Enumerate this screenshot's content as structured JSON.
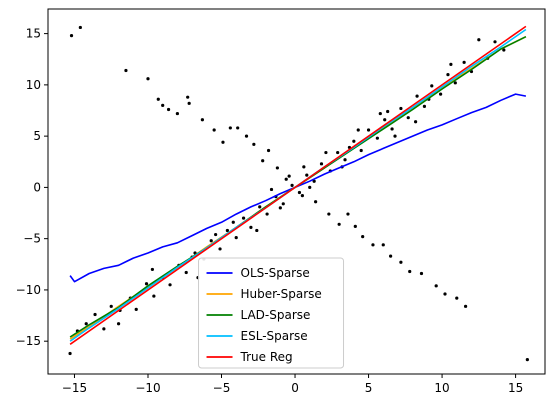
{
  "chart_data": {
    "type": "scatter",
    "title": "",
    "xlabel": "",
    "ylabel": "",
    "xlim": [
      -16.8,
      17.0
    ],
    "ylim": [
      -18.2,
      17.4
    ],
    "xticks": [
      -15,
      -10,
      -5,
      0,
      5,
      10,
      15
    ],
    "yticks": [
      -15,
      -10,
      -5,
      0,
      5,
      10,
      15
    ],
    "legend_position": "lower-center",
    "series": [
      {
        "name": "OLS-Sparse",
        "color": "#0000ff",
        "kind": "line",
        "x": [
          -15.3,
          -15.0,
          -14.0,
          -13.0,
          -12.0,
          -11.0,
          -10.0,
          -9.0,
          -8.0,
          -7.0,
          -6.0,
          -5.0,
          -4.0,
          -3.0,
          -2.0,
          -1.0,
          0.0,
          1.0,
          2.0,
          3.0,
          4.0,
          5.0,
          6.0,
          7.0,
          8.0,
          9.0,
          10.0,
          11.0,
          12.0,
          13.0,
          14.0,
          15.0,
          15.7
        ],
        "y": [
          -8.6,
          -9.2,
          -8.4,
          -7.9,
          -7.6,
          -6.9,
          -6.4,
          -5.8,
          -5.4,
          -4.7,
          -4.0,
          -3.4,
          -2.6,
          -1.9,
          -1.3,
          -0.6,
          0.0,
          0.6,
          1.3,
          1.9,
          2.5,
          3.2,
          3.8,
          4.4,
          5.0,
          5.6,
          6.1,
          6.7,
          7.3,
          7.8,
          8.5,
          9.1,
          8.9
        ]
      },
      {
        "name": "Huber-Sparse",
        "color": "#ffa500",
        "kind": "line",
        "x": [
          -15.3,
          -14.0,
          -12.0,
          -10.0,
          -8.0,
          -6.0,
          -4.0,
          -2.0,
          0.0,
          2.0,
          4.0,
          6.0,
          8.0,
          10.0,
          12.0,
          14.0,
          15.7
        ],
        "y": [
          -14.8,
          -13.6,
          -11.6,
          -9.7,
          -7.8,
          -5.8,
          -3.9,
          -1.9,
          0.0,
          1.9,
          3.9,
          5.8,
          7.7,
          9.7,
          11.6,
          13.5,
          14.7
        ]
      },
      {
        "name": "LAD-Sparse",
        "color": "#008000",
        "kind": "line",
        "x": [
          -15.3,
          -14.0,
          -12.0,
          -10.0,
          -8.0,
          -6.0,
          -4.0,
          -2.0,
          0.0,
          2.0,
          4.0,
          6.0,
          8.0,
          10.0,
          12.0,
          14.0,
          15.7
        ],
        "y": [
          -14.6,
          -13.4,
          -11.7,
          -9.6,
          -7.7,
          -5.9,
          -3.9,
          -1.9,
          0.0,
          1.9,
          3.8,
          5.7,
          7.6,
          9.6,
          11.5,
          13.5,
          14.7
        ]
      },
      {
        "name": "ESL-Sparse",
        "color": "#00bfff",
        "kind": "line",
        "x": [
          -15.3,
          -14.0,
          -12.0,
          -10.0,
          -8.0,
          -6.0,
          -4.0,
          -2.0,
          0.0,
          2.0,
          4.0,
          6.0,
          8.0,
          10.0,
          12.0,
          14.0,
          15.7
        ],
        "y": [
          -15.0,
          -13.7,
          -11.8,
          -9.8,
          -7.8,
          -5.9,
          -3.9,
          -2.0,
          0.0,
          2.0,
          3.9,
          5.9,
          7.8,
          9.8,
          11.8,
          13.7,
          15.4
        ]
      },
      {
        "name": "True Reg",
        "color": "#ff0000",
        "kind": "line",
        "x": [
          -15.3,
          15.7
        ],
        "y": [
          -15.3,
          15.7
        ]
      }
    ],
    "scatter_points": [
      [
        -15.2,
        14.8
      ],
      [
        -14.6,
        15.6
      ],
      [
        -11.5,
        11.4
      ],
      [
        -10.0,
        10.6
      ],
      [
        -9.3,
        8.6
      ],
      [
        -9.0,
        8.0
      ],
      [
        -8.6,
        7.6
      ],
      [
        -8.0,
        7.2
      ],
      [
        -7.3,
        8.8
      ],
      [
        -7.2,
        8.2
      ],
      [
        -6.3,
        6.6
      ],
      [
        -5.5,
        5.6
      ],
      [
        -4.9,
        4.4
      ],
      [
        -4.4,
        5.8
      ],
      [
        -3.9,
        5.8
      ],
      [
        -3.3,
        5.0
      ],
      [
        -2.8,
        4.2
      ],
      [
        -2.2,
        2.6
      ],
      [
        -1.8,
        3.6
      ],
      [
        -1.2,
        1.9
      ],
      [
        -0.6,
        0.8
      ],
      [
        0.5,
        -0.8
      ],
      [
        1.4,
        -1.4
      ],
      [
        2.3,
        -2.6
      ],
      [
        3.0,
        -3.6
      ],
      [
        3.6,
        -2.6
      ],
      [
        4.1,
        -3.8
      ],
      [
        4.6,
        -4.8
      ],
      [
        5.3,
        -5.6
      ],
      [
        6.0,
        -5.6
      ],
      [
        6.5,
        -6.7
      ],
      [
        7.2,
        -7.3
      ],
      [
        7.8,
        -8.2
      ],
      [
        8.6,
        -8.4
      ],
      [
        9.6,
        -9.6
      ],
      [
        10.2,
        -10.4
      ],
      [
        11.0,
        -10.8
      ],
      [
        11.6,
        -11.6
      ],
      [
        15.8,
        -16.8
      ],
      [
        -15.3,
        -16.2
      ],
      [
        -14.8,
        -14.0
      ],
      [
        -14.2,
        -13.3
      ],
      [
        -13.6,
        -12.4
      ],
      [
        -13.0,
        -13.8
      ],
      [
        -12.5,
        -11.6
      ],
      [
        -11.9,
        -12.0
      ],
      [
        -11.2,
        -10.8
      ],
      [
        -10.8,
        -11.9
      ],
      [
        -10.1,
        -9.4
      ],
      [
        -9.6,
        -10.6
      ],
      [
        -9.0,
        -8.8
      ],
      [
        -8.5,
        -9.5
      ],
      [
        -7.9,
        -7.6
      ],
      [
        -7.4,
        -8.3
      ],
      [
        -6.8,
        -6.4
      ],
      [
        -6.2,
        -7.0
      ],
      [
        -5.7,
        -5.2
      ],
      [
        -5.1,
        -6.0
      ],
      [
        -4.6,
        -4.2
      ],
      [
        -4.0,
        -4.9
      ],
      [
        -3.5,
        -3.0
      ],
      [
        -3.0,
        -3.9
      ],
      [
        -2.4,
        -1.9
      ],
      [
        -1.9,
        -2.6
      ],
      [
        -1.3,
        -0.9
      ],
      [
        -0.8,
        -1.6
      ],
      [
        -0.2,
        0.2
      ],
      [
        0.3,
        -0.5
      ],
      [
        0.8,
        1.2
      ],
      [
        1.3,
        0.6
      ],
      [
        1.8,
        2.3
      ],
      [
        2.4,
        1.6
      ],
      [
        2.9,
        3.4
      ],
      [
        3.4,
        2.7
      ],
      [
        4.0,
        4.5
      ],
      [
        4.5,
        3.6
      ],
      [
        5.0,
        5.6
      ],
      [
        5.6,
        4.8
      ],
      [
        6.1,
        6.6
      ],
      [
        6.6,
        5.7
      ],
      [
        7.2,
        7.7
      ],
      [
        7.7,
        6.8
      ],
      [
        8.3,
        8.9
      ],
      [
        8.8,
        7.9
      ],
      [
        9.3,
        9.9
      ],
      [
        9.9,
        9.1
      ],
      [
        10.4,
        11.0
      ],
      [
        10.9,
        10.2
      ],
      [
        11.5,
        12.2
      ],
      [
        12.0,
        11.3
      ],
      [
        12.5,
        14.4
      ],
      [
        13.1,
        12.6
      ],
      [
        13.6,
        14.2
      ],
      [
        14.2,
        13.4
      ],
      [
        -12.0,
        -13.3
      ],
      [
        -9.7,
        -8.0
      ],
      [
        -6.6,
        -8.8
      ],
      [
        -4.2,
        -3.4
      ],
      [
        -1.6,
        -0.2
      ],
      [
        0.6,
        2.0
      ],
      [
        3.2,
        2.0
      ],
      [
        5.8,
        7.2
      ],
      [
        8.2,
        6.4
      ],
      [
        10.6,
        12.0
      ],
      [
        -2.6,
        -4.2
      ],
      [
        -0.4,
        1.1
      ],
      [
        2.1,
        3.4
      ],
      [
        4.3,
        5.6
      ],
      [
        6.8,
        5.0
      ],
      [
        9.1,
        8.6
      ],
      [
        1.0,
        0.0
      ],
      [
        -1.0,
        -2.0
      ],
      [
        3.7,
        3.9
      ],
      [
        -5.4,
        -4.6
      ],
      [
        -7.0,
        -6.8
      ],
      [
        6.3,
        7.4
      ]
    ]
  }
}
